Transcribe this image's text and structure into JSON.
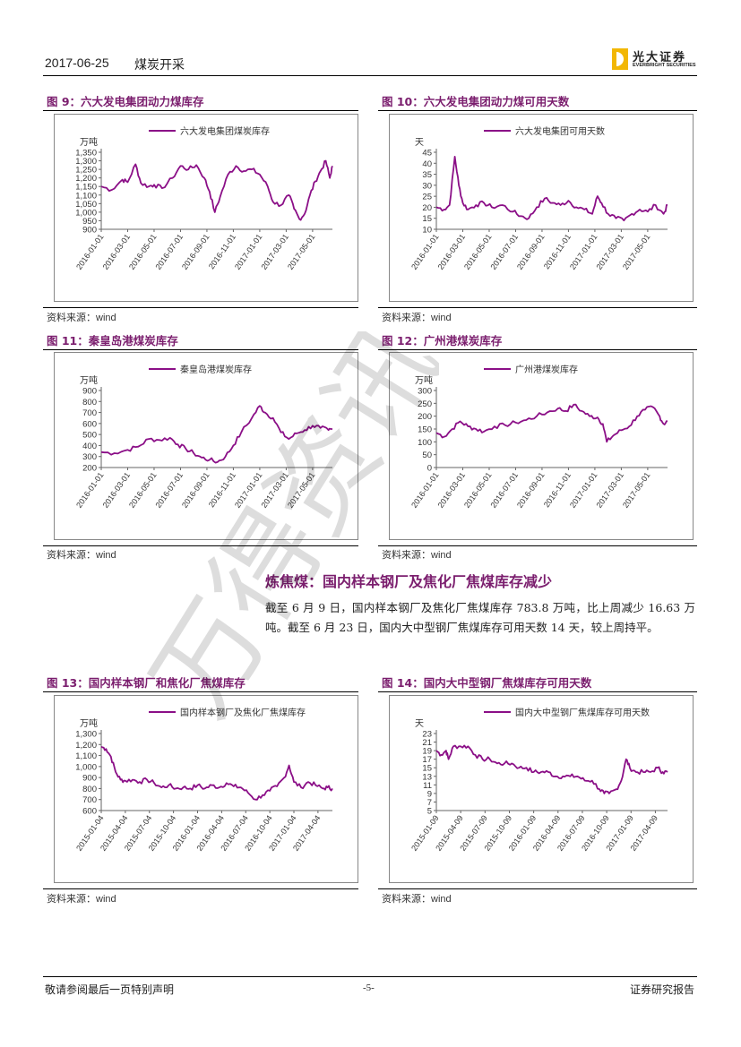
{
  "header": {
    "date": "2017-06-25",
    "title": "煤炭开采",
    "logo_cn": "光大证券",
    "logo_en": "EVERBRIGHT SECURITIES"
  },
  "colors": {
    "accent": "#7b1e6e",
    "series": "#8b0f87",
    "logo": "#f2b705"
  },
  "figures": {
    "fig9": {
      "title": "图 9：六大发电集团动力煤库存",
      "source": "资料来源：",
      "source_en": "wind"
    },
    "fig10": {
      "title": "图 10：六大发电集团动力煤可用天数",
      "source": "资料来源：",
      "source_en": "wind"
    },
    "fig11": {
      "title": "图 11：秦皇岛港煤炭库存",
      "source": "资料来源：",
      "source_en": "wind"
    },
    "fig12": {
      "title": "图 12：广州港煤炭库存",
      "source": "资料来源：",
      "source_en": "wind"
    },
    "fig13": {
      "title": "图 13：国内样本钢厂和焦化厂焦煤库存",
      "source": "资料来源：",
      "source_en": "wind"
    },
    "fig14": {
      "title": "图 14：国内大中型钢厂焦煤库存可用天数",
      "source": "资料来源：",
      "source_en": "wind"
    }
  },
  "section": {
    "title": "炼焦煤：国内样本钢厂及焦化厂焦煤库存减少",
    "paragraph": "截至 6 月 9 日，国内样本钢厂及焦化厂焦煤库存 783.8 万吨，比上周减少 16.63 万吨。截至 6 月 23 日，国内大中型钢厂焦煤库存可用天数 14 天，较上周持平。"
  },
  "footer": {
    "disclaimer": "敬请参阅最后一页特别声明",
    "page": "-5-",
    "report_type": "证券研究报告"
  },
  "watermark_text": "万得资讯",
  "chart_data": [
    {
      "id": "fig9",
      "type": "line",
      "legend": "六大发电集团煤炭库存",
      "unit": "万吨",
      "ylim": [
        900,
        1350
      ],
      "yticks": [
        "900",
        "950",
        "1,000",
        "1,050",
        "1,100",
        "1,150",
        "1,200",
        "1,250",
        "1,300",
        "1,350"
      ],
      "xticks": [
        "2016-01-01",
        "2016-03-01",
        "2016-05-01",
        "2016-07-01",
        "2016-09-01",
        "2016-11-01",
        "2017-01-01",
        "2017-03-01",
        "2017-05-01"
      ],
      "x_end": 8.75,
      "points": [
        [
          0,
          1150
        ],
        [
          0.4,
          1130
        ],
        [
          0.8,
          1190
        ],
        [
          1.0,
          1175
        ],
        [
          1.3,
          1280
        ],
        [
          1.5,
          1170
        ],
        [
          1.8,
          1150
        ],
        [
          2.0,
          1160
        ],
        [
          2.3,
          1140
        ],
        [
          2.7,
          1200
        ],
        [
          3.0,
          1270
        ],
        [
          3.3,
          1250
        ],
        [
          3.6,
          1275
        ],
        [
          3.9,
          1200
        ],
        [
          4.1,
          1120
        ],
        [
          4.3,
          1000
        ],
        [
          4.5,
          1090
        ],
        [
          4.8,
          1220
        ],
        [
          5.1,
          1270
        ],
        [
          5.4,
          1240
        ],
        [
          5.7,
          1250
        ],
        [
          6.0,
          1220
        ],
        [
          6.3,
          1150
        ],
        [
          6.5,
          1060
        ],
        [
          6.8,
          1040
        ],
        [
          7.1,
          1100
        ],
        [
          7.3,
          1020
        ],
        [
          7.5,
          960
        ],
        [
          7.7,
          990
        ],
        [
          7.9,
          1100
        ],
        [
          8.1,
          1180
        ],
        [
          8.3,
          1240
        ],
        [
          8.5,
          1300
        ],
        [
          8.65,
          1200
        ],
        [
          8.75,
          1270
        ]
      ]
    },
    {
      "id": "fig10",
      "type": "line",
      "legend": "六大发电集团可用天数",
      "unit": "天",
      "ylim": [
        10,
        45
      ],
      "yticks": [
        "10",
        "15",
        "20",
        "25",
        "30",
        "35",
        "40",
        "45"
      ],
      "xticks": [
        "2016-01-01",
        "2016-03-01",
        "2016-05-01",
        "2016-07-01",
        "2016-09-01",
        "2016-11-01",
        "2017-01-01",
        "2017-03-01",
        "2017-05-01"
      ],
      "x_end": 8.75,
      "points": [
        [
          0,
          20
        ],
        [
          0.3,
          19
        ],
        [
          0.5,
          21
        ],
        [
          0.7,
          43
        ],
        [
          0.85,
          30
        ],
        [
          1.0,
          22
        ],
        [
          1.2,
          19
        ],
        [
          1.5,
          21
        ],
        [
          1.8,
          22
        ],
        [
          2.1,
          20
        ],
        [
          2.5,
          21
        ],
        [
          2.9,
          18
        ],
        [
          3.2,
          16
        ],
        [
          3.5,
          15
        ],
        [
          3.8,
          20
        ],
        [
          4.1,
          24
        ],
        [
          4.4,
          22
        ],
        [
          4.7,
          21
        ],
        [
          5.0,
          23
        ],
        [
          5.3,
          20
        ],
        [
          5.6,
          19
        ],
        [
          5.9,
          17
        ],
        [
          6.1,
          25
        ],
        [
          6.25,
          22
        ],
        [
          6.5,
          17
        ],
        [
          6.8,
          15
        ],
        [
          7.1,
          14
        ],
        [
          7.4,
          17
        ],
        [
          7.7,
          19
        ],
        [
          8.0,
          18
        ],
        [
          8.3,
          21
        ],
        [
          8.6,
          17
        ],
        [
          8.75,
          21
        ]
      ]
    },
    {
      "id": "fig11",
      "type": "line",
      "legend": "秦皇岛港煤炭库存",
      "unit": "万吨",
      "ylim": [
        200,
        900
      ],
      "yticks": [
        "200",
        "300",
        "400",
        "500",
        "600",
        "700",
        "800",
        "900"
      ],
      "xticks": [
        "2016-01-01",
        "2016-03-01",
        "2016-05-01",
        "2016-07-01",
        "2016-09-01",
        "2016-11-01",
        "2017-01-01",
        "2017-03-01",
        "2017-05-01"
      ],
      "x_end": 8.75,
      "points": [
        [
          0,
          340
        ],
        [
          0.5,
          330
        ],
        [
          1.0,
          360
        ],
        [
          1.4,
          390
        ],
        [
          1.8,
          460
        ],
        [
          2.2,
          450
        ],
        [
          2.6,
          470
        ],
        [
          2.9,
          410
        ],
        [
          3.2,
          370
        ],
        [
          3.5,
          330
        ],
        [
          3.8,
          290
        ],
        [
          4.1,
          270
        ],
        [
          4.4,
          250
        ],
        [
          4.7,
          300
        ],
        [
          5.0,
          400
        ],
        [
          5.3,
          520
        ],
        [
          5.7,
          650
        ],
        [
          6.0,
          760
        ],
        [
          6.2,
          700
        ],
        [
          6.5,
          650
        ],
        [
          6.8,
          520
        ],
        [
          7.1,
          460
        ],
        [
          7.4,
          510
        ],
        [
          7.7,
          540
        ],
        [
          8.0,
          580
        ],
        [
          8.3,
          560
        ],
        [
          8.6,
          540
        ],
        [
          8.75,
          550
        ]
      ]
    },
    {
      "id": "fig12",
      "type": "line",
      "legend": "广州港煤炭库存",
      "unit": "万吨",
      "ylim": [
        0,
        300
      ],
      "yticks": [
        "0",
        "50",
        "100",
        "150",
        "200",
        "250",
        "300"
      ],
      "xticks": [
        "2016-01-01",
        "2016-03-01",
        "2016-05-01",
        "2016-07-01",
        "2016-09-01",
        "2016-11-01",
        "2017-01-01",
        "2017-03-01",
        "2017-05-01"
      ],
      "x_end": 8.75,
      "points": [
        [
          0,
          135
        ],
        [
          0.3,
          120
        ],
        [
          0.6,
          150
        ],
        [
          0.9,
          180
        ],
        [
          1.2,
          160
        ],
        [
          1.5,
          150
        ],
        [
          1.8,
          140
        ],
        [
          2.2,
          160
        ],
        [
          2.6,
          165
        ],
        [
          3.0,
          175
        ],
        [
          3.4,
          185
        ],
        [
          3.8,
          200
        ],
        [
          4.2,
          215
        ],
        [
          4.6,
          230
        ],
        [
          4.9,
          220
        ],
        [
          5.2,
          245
        ],
        [
          5.5,
          220
        ],
        [
          5.8,
          200
        ],
        [
          6.1,
          195
        ],
        [
          6.3,
          170
        ],
        [
          6.45,
          100
        ],
        [
          6.7,
          125
        ],
        [
          7.0,
          145
        ],
        [
          7.3,
          160
        ],
        [
          7.6,
          200
        ],
        [
          7.9,
          225
        ],
        [
          8.2,
          235
        ],
        [
          8.45,
          200
        ],
        [
          8.6,
          170
        ],
        [
          8.75,
          180
        ]
      ]
    },
    {
      "id": "fig13",
      "type": "line",
      "legend": "国内样本钢厂及焦化厂焦煤库存",
      "unit": "万吨",
      "ylim": [
        600,
        1300
      ],
      "yticks": [
        "600",
        "700",
        "800",
        "900",
        "1,000",
        "1,100",
        "1,200",
        "1,300"
      ],
      "xticks": [
        "2015-01-04",
        "2015-04-04",
        "2015-07-04",
        "2015-10-04",
        "2016-01-04",
        "2016-04-04",
        "2016-07-04",
        "2016-10-04",
        "2017-01-04",
        "2017-04-04"
      ],
      "x_end": 9.6,
      "points": [
        [
          0,
          1180
        ],
        [
          0.2,
          1160
        ],
        [
          0.4,
          1090
        ],
        [
          0.6,
          950
        ],
        [
          0.8,
          880
        ],
        [
          1.0,
          870
        ],
        [
          1.3,
          880
        ],
        [
          1.6,
          860
        ],
        [
          1.9,
          880
        ],
        [
          2.2,
          850
        ],
        [
          2.5,
          810
        ],
        [
          2.8,
          830
        ],
        [
          3.1,
          800
        ],
        [
          3.4,
          810
        ],
        [
          3.7,
          800
        ],
        [
          4.0,
          830
        ],
        [
          4.3,
          800
        ],
        [
          4.6,
          830
        ],
        [
          4.9,
          810
        ],
        [
          5.2,
          850
        ],
        [
          5.5,
          820
        ],
        [
          5.8,
          810
        ],
        [
          6.1,
          760
        ],
        [
          6.4,
          700
        ],
        [
          6.7,
          740
        ],
        [
          7.0,
          780
        ],
        [
          7.3,
          820
        ],
        [
          7.6,
          900
        ],
        [
          7.8,
          1010
        ],
        [
          8.0,
          860
        ],
        [
          8.3,
          810
        ],
        [
          8.6,
          860
        ],
        [
          8.9,
          830
        ],
        [
          9.2,
          800
        ],
        [
          9.4,
          810
        ],
        [
          9.6,
          800
        ]
      ]
    },
    {
      "id": "fig14",
      "type": "line",
      "legend": "国内大中型钢厂焦煤库存可用天数",
      "unit": "天",
      "ylim": [
        5,
        23
      ],
      "yticks": [
        "5",
        "7",
        "9",
        "11",
        "13",
        "15",
        "17",
        "19",
        "21",
        "23"
      ],
      "xticks": [
        "2015-01-09",
        "2015-04-09",
        "2015-07-09",
        "2015-10-09",
        "2016-01-09",
        "2016-04-09",
        "2016-07-09",
        "2016-10-09",
        "2017-01-09",
        "2017-04-09"
      ],
      "x_end": 9.5,
      "points": [
        [
          0,
          19
        ],
        [
          0.2,
          18
        ],
        [
          0.4,
          19
        ],
        [
          0.5,
          17
        ],
        [
          0.7,
          20
        ],
        [
          1.0,
          20
        ],
        [
          1.3,
          20
        ],
        [
          1.6,
          18
        ],
        [
          1.9,
          17
        ],
        [
          2.2,
          17
        ],
        [
          2.5,
          16
        ],
        [
          2.8,
          16
        ],
        [
          3.1,
          16
        ],
        [
          3.4,
          15
        ],
        [
          3.7,
          15
        ],
        [
          4.0,
          14
        ],
        [
          4.3,
          14
        ],
        [
          4.6,
          14
        ],
        [
          4.9,
          13
        ],
        [
          5.2,
          13
        ],
        [
          5.5,
          13
        ],
        [
          5.8,
          13
        ],
        [
          6.1,
          12
        ],
        [
          6.4,
          12
        ],
        [
          6.7,
          10
        ],
        [
          6.9,
          9
        ],
        [
          7.1,
          9
        ],
        [
          7.4,
          10
        ],
        [
          7.6,
          12
        ],
        [
          7.8,
          17
        ],
        [
          7.95,
          15
        ],
        [
          8.2,
          14
        ],
        [
          8.5,
          14
        ],
        [
          8.8,
          14
        ],
        [
          9.1,
          15
        ],
        [
          9.3,
          14
        ],
        [
          9.5,
          14
        ]
      ]
    }
  ]
}
